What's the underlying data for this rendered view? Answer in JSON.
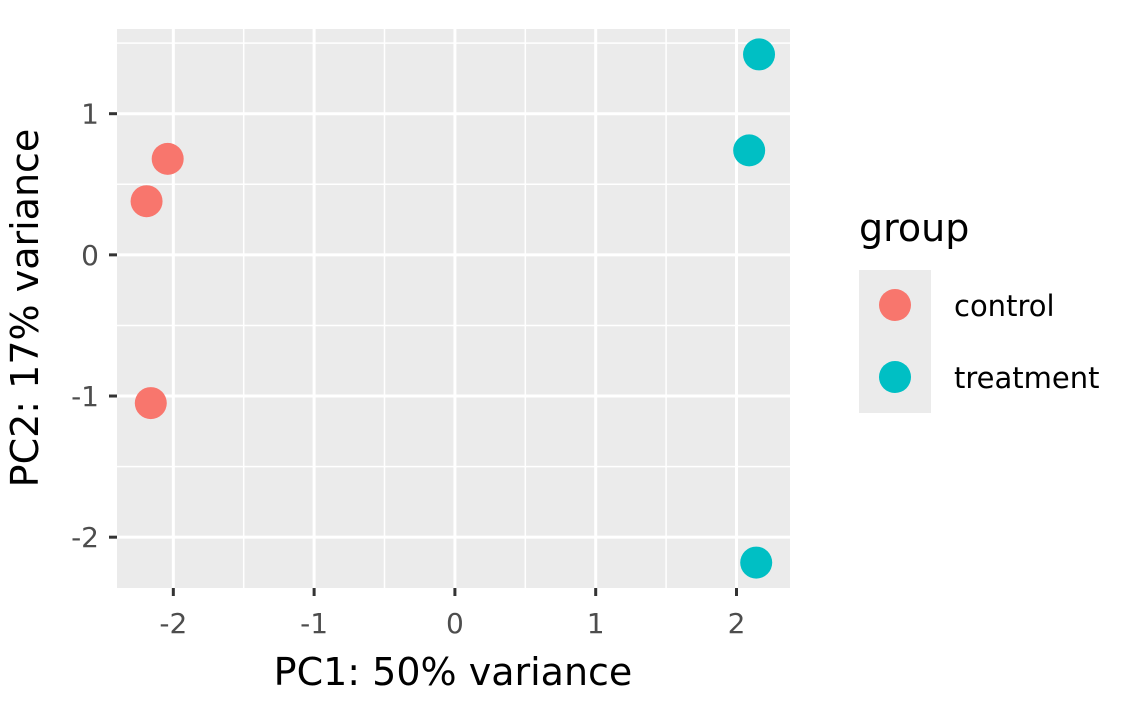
{
  "chart_data": {
    "type": "scatter",
    "xlabel": "PC1: 50% variance",
    "ylabel": "PC2: 17% variance",
    "xlim": [
      -2.4,
      2.38
    ],
    "ylim": [
      -2.36,
      1.6
    ],
    "x_ticks": [
      -2,
      -1,
      0,
      1,
      2
    ],
    "y_ticks": [
      -2,
      -1,
      0,
      1
    ],
    "x_tick_labels": [
      "-2",
      "-1",
      "0",
      "1",
      "2"
    ],
    "y_tick_labels": [
      "-2",
      "-1",
      "0",
      "1"
    ],
    "grid": true,
    "panel_background": "#ebebeb",
    "legend": {
      "title": "group",
      "position": "right"
    },
    "series": [
      {
        "name": "control",
        "color": "#f8766d",
        "points": [
          {
            "x": -2.04,
            "y": 0.68
          },
          {
            "x": -2.19,
            "y": 0.38
          },
          {
            "x": -2.16,
            "y": -1.05
          }
        ]
      },
      {
        "name": "treatment",
        "color": "#00bfc4",
        "points": [
          {
            "x": 2.16,
            "y": 1.42
          },
          {
            "x": 2.09,
            "y": 0.74
          },
          {
            "x": 2.14,
            "y": -2.18
          }
        ]
      }
    ]
  }
}
